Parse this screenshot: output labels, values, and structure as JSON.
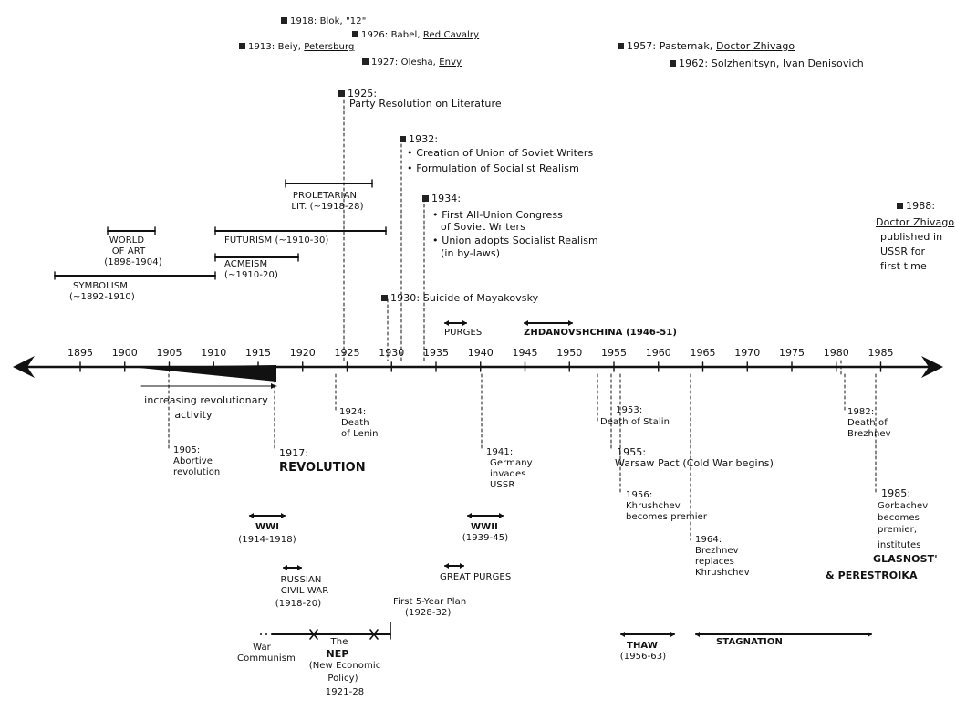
{
  "axis": {
    "years": [
      "1895",
      "1900",
      "1905",
      "1910",
      "1915",
      "1920",
      "1925",
      "1930",
      "1935",
      "1940",
      "1945",
      "1950",
      "1955",
      "1960",
      "1965",
      "1970",
      "1975",
      "1980",
      "1985"
    ]
  },
  "upper_events": {
    "blok": "1918: Blok, \"12\"",
    "babel_prefix": "1926: Babel, ",
    "babel_work": "Red Cavalry",
    "bely_prefix": "1913: Beiy, ",
    "bely_work": "Petersburg",
    "olesha_prefix": "1927: Olesha, ",
    "olesha_work": "Envy",
    "pasternak_prefix": "1957: Pasternak, ",
    "pasternak_work": "Doctor Zhivago",
    "solzh_prefix": "1962: Solzhenitsyn, ",
    "solzh_work": "Ivan Denisovich",
    "party_res_year": "1925:",
    "party_res_text": "Party Resolution on Literature",
    "union_year": "1932:",
    "union_items": [
      "Creation of Union of Soviet Writers",
      "Formulation of Socialist Realism"
    ],
    "congress_year": "1934:",
    "congress_items": [
      "First All-Union Congress",
      "of Soviet Writers",
      "Union adopts Socialist Realism",
      "(in by-laws)"
    ],
    "mayakovsky": "1930: Suicide of Mayakovsky",
    "zhivago_year": "1988:",
    "zhivago_work": "Doctor Zhivago",
    "zhivago_lines": [
      "published in",
      "USSR for",
      "first time"
    ]
  },
  "movements": {
    "proletarian": [
      "PROLETARIAN",
      "LIT. (~1918-28)"
    ],
    "world_of_art": [
      "WORLD",
      "OF ART",
      "(1898-1904)"
    ],
    "futurism": "FUTURISM (~1910-30)",
    "acmeism": [
      "ACMEISM",
      "(~1910-20)"
    ],
    "symbolism": [
      "SYMBOLISM",
      "(~1892-1910)"
    ],
    "purges_top": "PURGES",
    "zhdanov": "ZHDANOVSHCHINA (1946-51)"
  },
  "lower_events": {
    "rev_activity": [
      "increasing revolutionary",
      "activity"
    ],
    "e1905": [
      "1905:",
      "Abortive",
      "revolution"
    ],
    "e1917_year": "1917:",
    "e1917_label": "REVOLUTION",
    "e1924": [
      "1924:",
      "Death",
      "of Lenin"
    ],
    "e1941": [
      "1941:",
      "Germany",
      "invades",
      "USSR"
    ],
    "e1953": [
      "1953:",
      "Death of Stalin"
    ],
    "e1955": [
      "1955:",
      "Warsaw Pact (Cold War begins)"
    ],
    "e1956": [
      "1956:",
      "Khrushchev",
      "becomes premier"
    ],
    "e1964": [
      "1964:",
      "Brezhnev",
      "replaces",
      "Khrushchev"
    ],
    "e1982": [
      "1982:",
      "Death of",
      "Brezhnev"
    ],
    "e1985": [
      "1985:",
      "Gorbachev",
      "becomes",
      "premier,",
      "institutes"
    ],
    "glasnost": [
      "GLASNOST'",
      "& PERESTROIKA"
    ]
  },
  "periods": {
    "wwi": [
      "WWI",
      "(1914-1918)"
    ],
    "wwii": [
      "WWII",
      "(1939-45)"
    ],
    "civil_war": [
      "RUSSIAN",
      "CIVIL WAR",
      "(1918-20)"
    ],
    "great_purges": "GREAT PURGES",
    "five_year": [
      "First 5-Year Plan",
      "(1928-32)"
    ],
    "war_communism": [
      "War",
      "Communism"
    ],
    "nep": [
      "The",
      "NEP",
      "(New Economic",
      "Policy)",
      "1921-28"
    ],
    "thaw": [
      "THAW",
      "(1956-63)"
    ],
    "stagnation": "STAGNATION"
  }
}
